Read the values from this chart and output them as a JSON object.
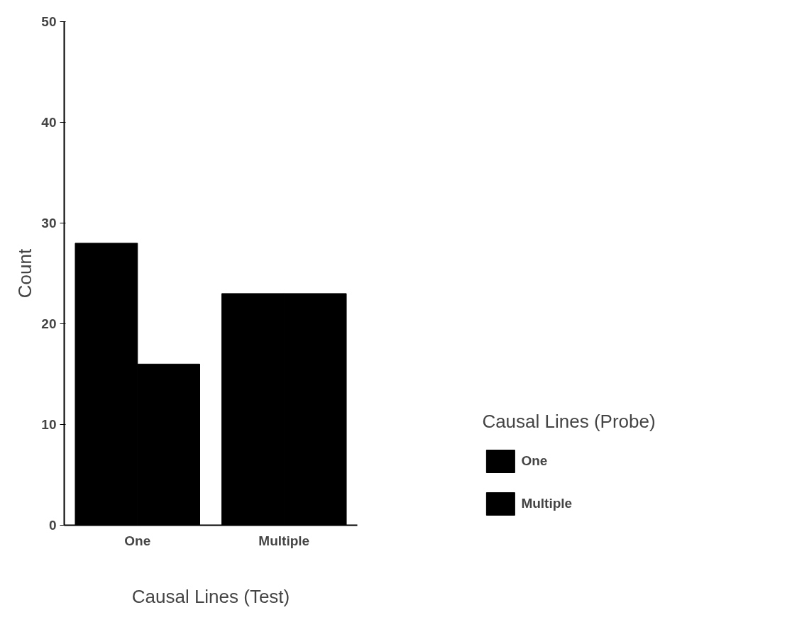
{
  "chart_data": {
    "type": "bar",
    "xlabel": "Causal Lines (Test)",
    "ylabel": "Count",
    "legend_title": "Causal Lines (Probe)",
    "categories": [
      "One",
      "Multiple"
    ],
    "series": [
      {
        "name": "One",
        "color": "#000000",
        "values": [
          28,
          23
        ]
      },
      {
        "name": "Multiple",
        "color": "#000000",
        "values": [
          16,
          23
        ]
      }
    ],
    "ylim": [
      0,
      50
    ],
    "yticks": [
      0,
      10,
      20,
      30,
      40,
      50
    ],
    "grid": false,
    "legend": "right"
  }
}
